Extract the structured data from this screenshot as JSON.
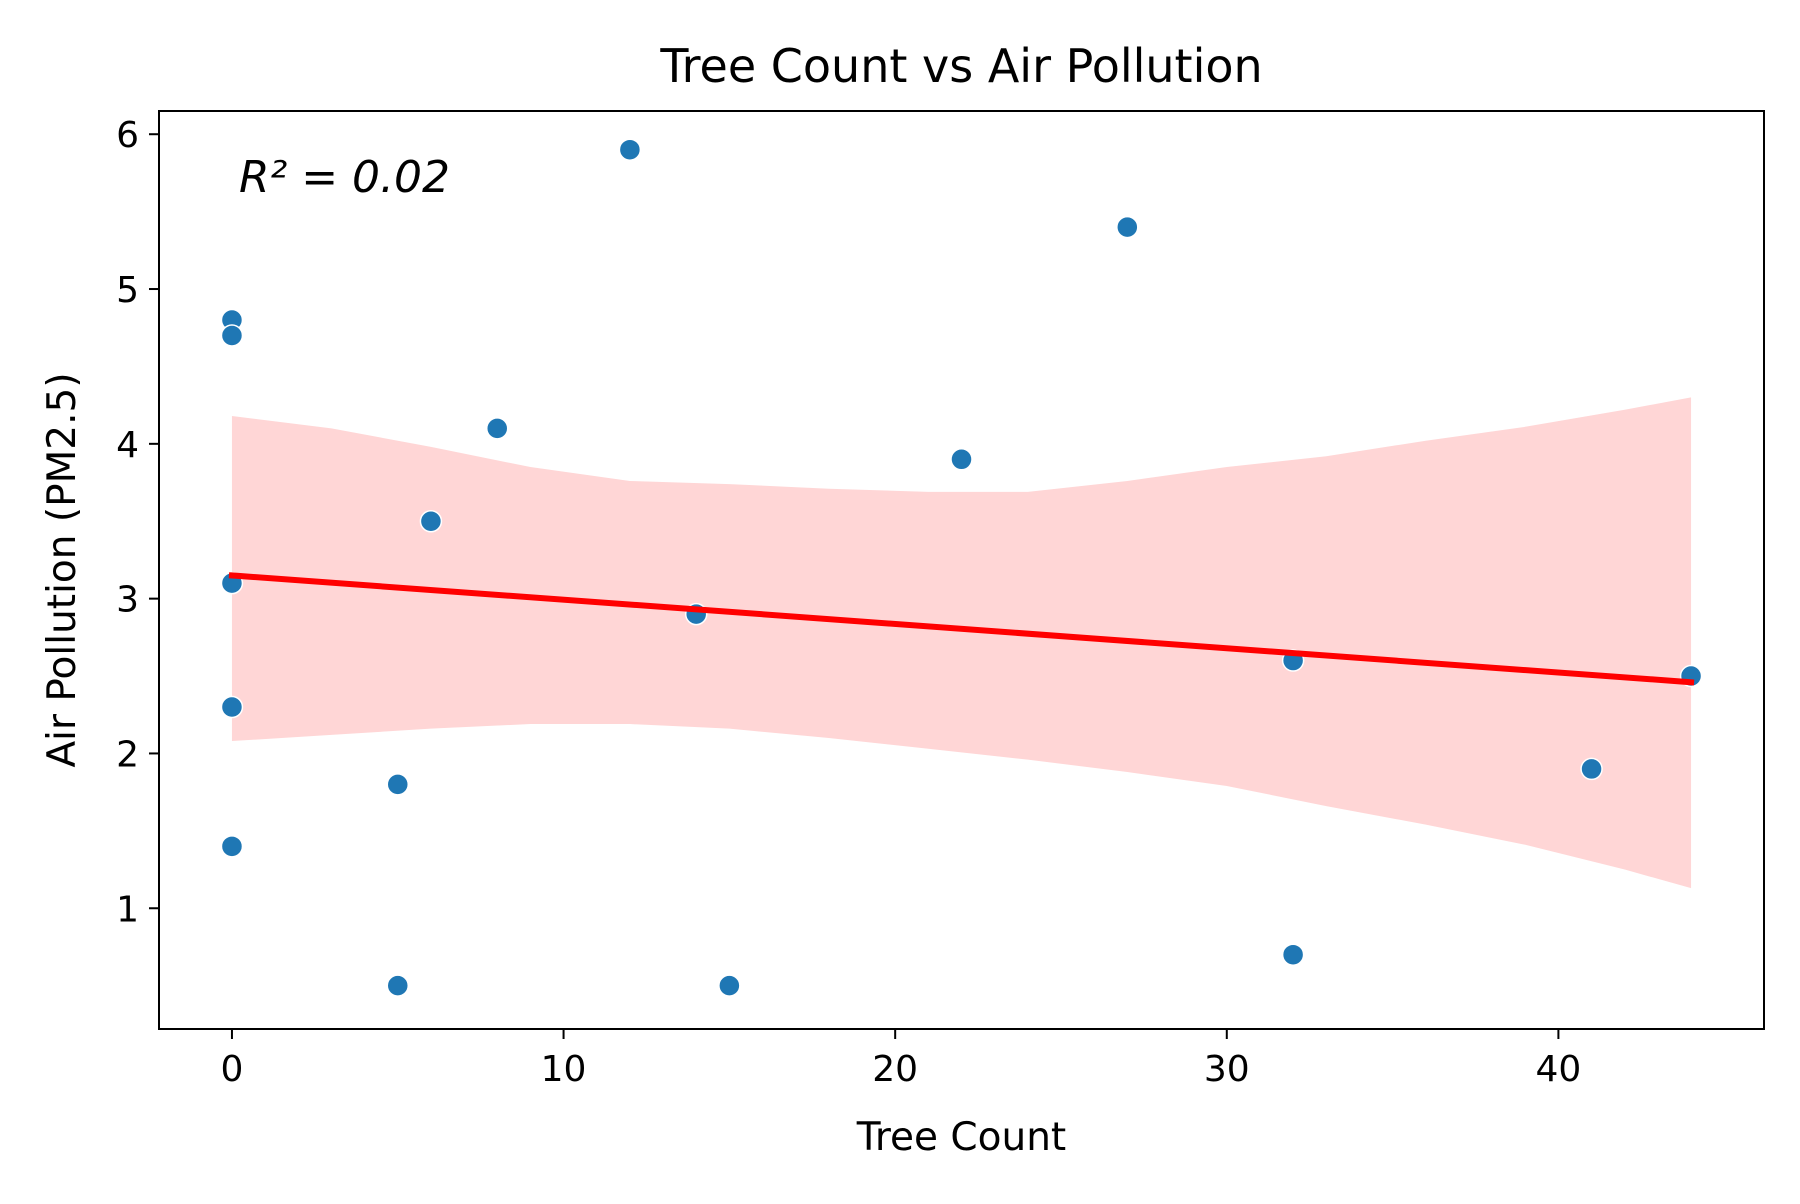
{
  "chart_data": {
    "type": "scatter",
    "title": "Tree Count vs Air Pollution",
    "xlabel": "Tree Count",
    "ylabel": "Air Pollution (PM2.5)",
    "annotation": "R² = 0.02",
    "xlim": [
      -2.2,
      46.2
    ],
    "ylim": [
      0.22,
      6.15
    ],
    "xticks": [
      0,
      10,
      20,
      30,
      40
    ],
    "yticks": [
      1,
      2,
      3,
      4,
      5,
      6
    ],
    "grid": false,
    "legend": "none",
    "colors": {
      "points": "#1f77b4",
      "fit_line": "#ff0000",
      "ci_band": "#ffd6d6"
    },
    "points": [
      {
        "x": 0,
        "y": 4.8
      },
      {
        "x": 0,
        "y": 4.7
      },
      {
        "x": 0,
        "y": 3.1
      },
      {
        "x": 0,
        "y": 2.3
      },
      {
        "x": 0,
        "y": 1.4
      },
      {
        "x": 5,
        "y": 1.8
      },
      {
        "x": 5,
        "y": 0.5
      },
      {
        "x": 6,
        "y": 3.5
      },
      {
        "x": 8,
        "y": 4.1
      },
      {
        "x": 12,
        "y": 5.9
      },
      {
        "x": 14,
        "y": 2.9
      },
      {
        "x": 15,
        "y": 0.5
      },
      {
        "x": 22,
        "y": 3.9
      },
      {
        "x": 27,
        "y": 5.4
      },
      {
        "x": 32,
        "y": 2.6
      },
      {
        "x": 32,
        "y": 0.7
      },
      {
        "x": 41,
        "y": 1.9
      },
      {
        "x": 44,
        "y": 2.5
      }
    ],
    "fit_line": [
      {
        "x": 0,
        "y": 3.15
      },
      {
        "x": 44,
        "y": 2.46
      }
    ],
    "ci_band": [
      {
        "x": 0,
        "lower": 2.08,
        "upper": 4.18
      },
      {
        "x": 3,
        "lower": 2.12,
        "upper": 4.1
      },
      {
        "x": 6,
        "lower": 2.16,
        "upper": 3.98
      },
      {
        "x": 9,
        "lower": 2.19,
        "upper": 3.85
      },
      {
        "x": 12,
        "lower": 2.19,
        "upper": 3.76
      },
      {
        "x": 15,
        "lower": 2.16,
        "upper": 3.74
      },
      {
        "x": 18,
        "lower": 2.1,
        "upper": 3.71
      },
      {
        "x": 21,
        "lower": 2.03,
        "upper": 3.69
      },
      {
        "x": 24,
        "lower": 1.96,
        "upper": 3.69
      },
      {
        "x": 27,
        "lower": 1.88,
        "upper": 3.76
      },
      {
        "x": 30,
        "lower": 1.79,
        "upper": 3.85
      },
      {
        "x": 33,
        "lower": 1.66,
        "upper": 3.92
      },
      {
        "x": 36,
        "lower": 1.54,
        "upper": 4.02
      },
      {
        "x": 39,
        "lower": 1.41,
        "upper": 4.11
      },
      {
        "x": 42,
        "lower": 1.25,
        "upper": 4.22
      },
      {
        "x": 44,
        "lower": 1.13,
        "upper": 4.3
      }
    ]
  }
}
